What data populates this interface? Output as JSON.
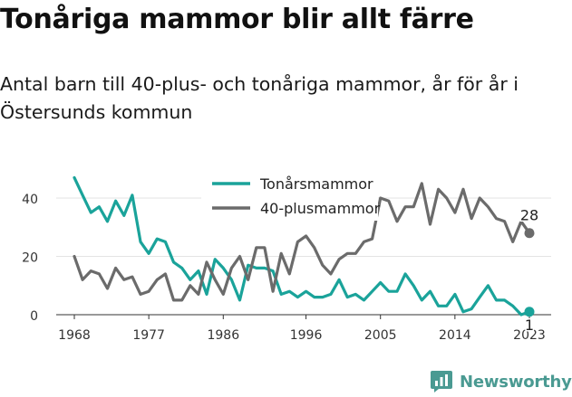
{
  "title": "Tonåriga mammor blir allt färre",
  "subtitle": "Antal barn till 40-plus- och tonåriga mammor, år för år i Östersunds kommun",
  "brand": {
    "name": "Newsworthy",
    "icon": "newsworthy-logo-icon",
    "color": "#4a9a92"
  },
  "chart_data": {
    "type": "line",
    "title": "",
    "xlabel": "",
    "ylabel": "",
    "xlim": [
      1968,
      2023
    ],
    "ylim": [
      0,
      45
    ],
    "x_ticks": [
      "1968",
      "1977",
      "1986",
      "1996",
      "2005",
      "2014",
      "2023"
    ],
    "y_ticks": [
      "0",
      "20",
      "40"
    ],
    "grid": "horizontal",
    "legend_position": "top-center",
    "x": [
      1968,
      1969,
      1970,
      1971,
      1972,
      1973,
      1974,
      1975,
      1976,
      1977,
      1978,
      1979,
      1980,
      1981,
      1982,
      1983,
      1984,
      1985,
      1986,
      1987,
      1988,
      1989,
      1990,
      1991,
      1992,
      1993,
      1994,
      1995,
      1996,
      1997,
      1998,
      1999,
      2000,
      2001,
      2002,
      2003,
      2004,
      2005,
      2006,
      2007,
      2008,
      2009,
      2010,
      2011,
      2012,
      2013,
      2014,
      2015,
      2016,
      2017,
      2018,
      2019,
      2020,
      2021,
      2022,
      2023
    ],
    "series": [
      {
        "name": "Tonårsmammor",
        "color": "#1aa39a",
        "values": [
          47,
          41,
          35,
          37,
          32,
          39,
          34,
          41,
          25,
          21,
          26,
          25,
          18,
          16,
          12,
          15,
          7,
          19,
          16,
          12,
          5,
          17,
          16,
          16,
          15,
          7,
          8,
          6,
          8,
          6,
          6,
          7,
          12,
          6,
          7,
          5,
          8,
          11,
          8,
          8,
          14,
          10,
          5,
          8,
          3,
          3,
          7,
          1,
          2,
          6,
          10,
          5,
          5,
          3,
          0,
          1
        ],
        "end_label": "1"
      },
      {
        "name": "40-plusmammor",
        "color": "#6b6b6b",
        "values": [
          20,
          12,
          15,
          14,
          9,
          16,
          12,
          13,
          7,
          8,
          12,
          14,
          5,
          5,
          10,
          7,
          18,
          12,
          7,
          16,
          20,
          12,
          23,
          23,
          8,
          21,
          14,
          25,
          27,
          23,
          17,
          14,
          19,
          21,
          21,
          25,
          26,
          40,
          39,
          32,
          37,
          37,
          45,
          31,
          43,
          40,
          35,
          43,
          33,
          40,
          37,
          33,
          32,
          25,
          32,
          28
        ],
        "end_label": "28"
      }
    ]
  }
}
